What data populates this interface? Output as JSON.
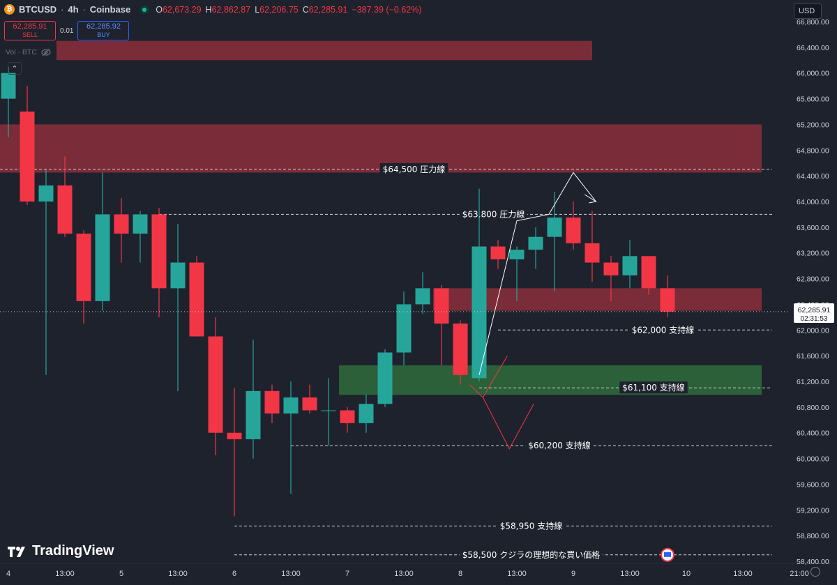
{
  "header": {
    "symbol": "BTCUSD",
    "timeframe": "4h",
    "exchange": "Coinbase",
    "coin_icon": "bitcoin-icon",
    "ohlc": {
      "o_label": "O",
      "o": "62,673.29",
      "h_label": "H",
      "h": "62,862.87",
      "l_label": "L",
      "l": "62,206.75",
      "c_label": "C",
      "c": "62,285.91",
      "change": "−387.39 (−0.62%)"
    },
    "sep": "·"
  },
  "trade": {
    "sell_price": "62,285.91",
    "sell_label": "SELL",
    "spread": "0.01",
    "buy_price": "62,285.92",
    "buy_label": "BUY"
  },
  "volume_label": "Vol · BTC",
  "currency": "USD",
  "branding": "TradingView",
  "colors": {
    "up": "#26a69a",
    "down": "#f23645",
    "resistance_zone": "#8b2e3b",
    "support_zone": "#2f6b3c",
    "background": "#1e222d"
  },
  "chart_data": {
    "type": "candlestick",
    "symbol": "BTCUSD",
    "interval": "4h",
    "ylim": [
      58300,
      66800
    ],
    "y_ticks": [
      "58,400.00",
      "58,800.00",
      "59,200.00",
      "59,600.00",
      "60,000.00",
      "60,400.00",
      "60,800.00",
      "61,200.00",
      "61,600.00",
      "62,000.00",
      "62,400.00",
      "62,800.00",
      "63,200.00",
      "63,600.00",
      "64,000.00",
      "64,400.00",
      "64,800.00",
      "65,200.00",
      "65,600.00",
      "66,000.00",
      "66,400.00",
      "66,800.00"
    ],
    "x_ticks": [
      {
        "i": 0,
        "label": "4"
      },
      {
        "i": 3,
        "label": "13:00"
      },
      {
        "i": 6,
        "label": "5"
      },
      {
        "i": 9,
        "label": "13:00"
      },
      {
        "i": 12,
        "label": "6"
      },
      {
        "i": 15,
        "label": "13:00"
      },
      {
        "i": 18,
        "label": "7"
      },
      {
        "i": 21,
        "label": "13:00"
      },
      {
        "i": 24,
        "label": "8"
      },
      {
        "i": 27,
        "label": "13:00"
      },
      {
        "i": 30,
        "label": "9"
      },
      {
        "i": 33,
        "label": "13:00"
      },
      {
        "i": 36,
        "label": "10"
      },
      {
        "i": 39,
        "label": "13:00"
      },
      {
        "i": 42,
        "label": "21:00"
      }
    ],
    "candles": [
      {
        "o": 65600,
        "h": 66100,
        "l": 65000,
        "c": 66000
      },
      {
        "o": 65400,
        "h": 65800,
        "l": 63950,
        "c": 64000
      },
      {
        "o": 64000,
        "h": 64500,
        "l": 61300,
        "c": 64250
      },
      {
        "o": 64250,
        "h": 64700,
        "l": 63450,
        "c": 63500
      },
      {
        "o": 63500,
        "h": 63550,
        "l": 62100,
        "c": 62450
      },
      {
        "o": 62450,
        "h": 64450,
        "l": 62300,
        "c": 63800
      },
      {
        "o": 63800,
        "h": 64050,
        "l": 63050,
        "c": 63500
      },
      {
        "o": 63500,
        "h": 63850,
        "l": 63050,
        "c": 63800
      },
      {
        "o": 63800,
        "h": 63900,
        "l": 62200,
        "c": 62650
      },
      {
        "o": 62650,
        "h": 63650,
        "l": 61050,
        "c": 63050
      },
      {
        "o": 63050,
        "h": 63150,
        "l": 61900,
        "c": 61900
      },
      {
        "o": 61900,
        "h": 62200,
        "l": 60050,
        "c": 60400
      },
      {
        "o": 60400,
        "h": 61100,
        "l": 59100,
        "c": 60300
      },
      {
        "o": 60300,
        "h": 61850,
        "l": 60000,
        "c": 61050
      },
      {
        "o": 61050,
        "h": 61150,
        "l": 60550,
        "c": 60700
      },
      {
        "o": 60700,
        "h": 61200,
        "l": 59450,
        "c": 60950
      },
      {
        "o": 60950,
        "h": 61150,
        "l": 60700,
        "c": 60750
      },
      {
        "o": 60750,
        "h": 61250,
        "l": 60200,
        "c": 60750
      },
      {
        "o": 60750,
        "h": 60800,
        "l": 60400,
        "c": 60550
      },
      {
        "o": 60550,
        "h": 61000,
        "l": 60400,
        "c": 60850
      },
      {
        "o": 60850,
        "h": 61700,
        "l": 60800,
        "c": 61650
      },
      {
        "o": 61650,
        "h": 62600,
        "l": 61450,
        "c": 62400
      },
      {
        "o": 62400,
        "h": 62900,
        "l": 62250,
        "c": 62650
      },
      {
        "o": 62650,
        "h": 62700,
        "l": 61450,
        "c": 62100
      },
      {
        "o": 62100,
        "h": 62150,
        "l": 61150,
        "c": 61300
      },
      {
        "o": 61250,
        "h": 64200,
        "l": 61200,
        "c": 63300
      },
      {
        "o": 63300,
        "h": 63400,
        "l": 62950,
        "c": 63100
      },
      {
        "o": 63100,
        "h": 63300,
        "l": 62450,
        "c": 63250
      },
      {
        "o": 63250,
        "h": 63600,
        "l": 62950,
        "c": 63450
      },
      {
        "o": 63450,
        "h": 64150,
        "l": 62600,
        "c": 63750
      },
      {
        "o": 63750,
        "h": 64000,
        "l": 63250,
        "c": 63350
      },
      {
        "o": 63350,
        "h": 63850,
        "l": 62750,
        "c": 63050
      },
      {
        "o": 63050,
        "h": 63150,
        "l": 62450,
        "c": 62850
      },
      {
        "o": 62850,
        "h": 63400,
        "l": 62650,
        "c": 63150
      },
      {
        "o": 63150,
        "h": 63150,
        "l": 62550,
        "c": 62650
      },
      {
        "o": 62650,
        "h": 62850,
        "l": 62200,
        "c": 62286
      }
    ],
    "zones": [
      {
        "type": "resistance",
        "from": 66200,
        "to": 66500,
        "start_i": 3,
        "end_i": 31
      },
      {
        "type": "resistance",
        "from": 64450,
        "to": 65200,
        "start_i": 0,
        "end_i": 40
      },
      {
        "type": "resistance",
        "from": 62300,
        "to": 62650,
        "start_i": 23,
        "end_i": 40
      },
      {
        "type": "support",
        "from": 60990,
        "to": 61450,
        "start_i": 18,
        "end_i": 40
      }
    ],
    "levels": [
      {
        "price": 64500,
        "label": "$64,500 圧力線",
        "start_i": 0
      },
      {
        "price": 63800,
        "label": "$63,800 圧力線",
        "start_i": 8
      },
      {
        "price": 62000,
        "label": "$62,000 支持線",
        "start_i": 26
      },
      {
        "price": 61100,
        "label": "$61,100 支持線",
        "start_i": 25
      },
      {
        "price": 60200,
        "label": "$60,200 支持線",
        "start_i": 15
      },
      {
        "price": 58950,
        "label": "$58,950 支持線",
        "start_i": 12
      },
      {
        "price": 58500,
        "label": "$58,500  クジラの理想的な買い価格",
        "start_i": 12
      }
    ],
    "last_price": {
      "price": 62285.91,
      "label": "62,285.91",
      "countdown": "02:31:53"
    },
    "grid": false,
    "legend": "none"
  }
}
